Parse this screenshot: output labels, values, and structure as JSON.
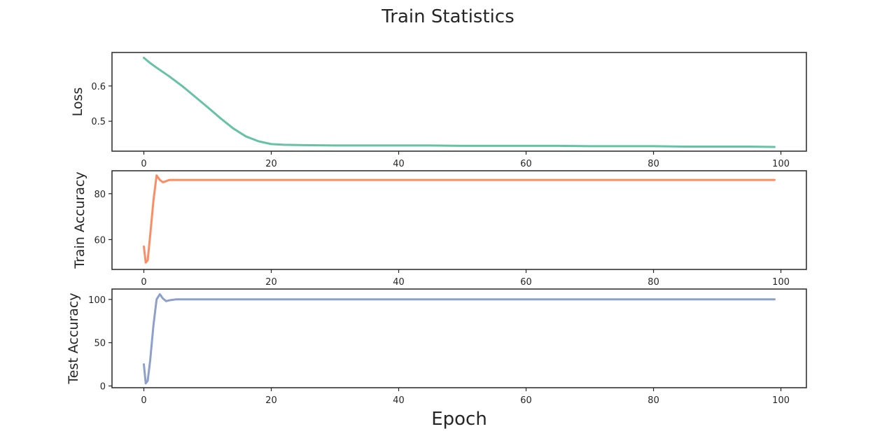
{
  "figure": {
    "title": "Train Statistics",
    "xlabel": "Epoch"
  },
  "chart_data": [
    {
      "type": "line",
      "title": "",
      "xlabel": "",
      "ylabel": "Loss",
      "xlim": [
        -5,
        104
      ],
      "ylim": [
        0.415,
        0.695
      ],
      "xticks": [
        0,
        20,
        40,
        60,
        80,
        100
      ],
      "yticks": [
        0.5,
        0.6
      ],
      "ytick_labels": [
        "0.5",
        "0.6"
      ],
      "grid": false,
      "color": "#66c2a5",
      "series": [
        {
          "x": [
            0,
            1,
            2,
            4,
            6,
            8,
            10,
            12,
            14,
            16,
            18,
            20,
            22,
            25,
            30,
            35,
            40,
            45,
            50,
            55,
            60,
            65,
            70,
            75,
            80,
            85,
            90,
            95,
            99
          ],
          "y": [
            0.68,
            0.665,
            0.652,
            0.627,
            0.6,
            0.57,
            0.54,
            0.509,
            0.48,
            0.457,
            0.443,
            0.435,
            0.433,
            0.432,
            0.431,
            0.431,
            0.431,
            0.431,
            0.43,
            0.43,
            0.43,
            0.43,
            0.429,
            0.429,
            0.429,
            0.428,
            0.428,
            0.428,
            0.427
          ]
        }
      ]
    },
    {
      "type": "line",
      "title": "",
      "xlabel": "",
      "ylabel": "Train Accuracy",
      "xlim": [
        -5,
        104
      ],
      "ylim": [
        47,
        90
      ],
      "xticks": [
        0,
        20,
        40,
        60,
        80,
        100
      ],
      "yticks": [
        60,
        80
      ],
      "ytick_labels": [
        "60",
        "80"
      ],
      "grid": false,
      "color": "#fc8d62",
      "series": [
        {
          "x": [
            0,
            0.3,
            0.6,
            1,
            1.5,
            2,
            2.5,
            3,
            3.5,
            4,
            5,
            6,
            8,
            10,
            20,
            40,
            60,
            80,
            99
          ],
          "y": [
            57,
            50,
            51,
            62,
            77,
            88,
            86,
            85,
            85.5,
            86,
            86,
            86,
            86,
            86,
            86,
            86,
            86,
            86,
            86
          ]
        }
      ]
    },
    {
      "type": "line",
      "title": "",
      "xlabel": "",
      "ylabel": "Test Accuracy",
      "xlim": [
        -5,
        104
      ],
      "ylim": [
        -2,
        112
      ],
      "xticks": [
        0,
        20,
        40,
        60,
        80,
        100
      ],
      "yticks": [
        0,
        50,
        100
      ],
      "ytick_labels": [
        "0",
        "50",
        "100"
      ],
      "grid": false,
      "color": "#8da0cb",
      "series": [
        {
          "x": [
            0,
            0.3,
            0.6,
            1,
            1.5,
            2,
            2.5,
            3,
            3.5,
            4,
            5,
            6,
            8,
            10,
            20,
            40,
            60,
            80,
            99
          ],
          "y": [
            25,
            3,
            6,
            30,
            70,
            100,
            106,
            101,
            98,
            99,
            100,
            100,
            100,
            100,
            100,
            100,
            100,
            100,
            100
          ]
        }
      ]
    }
  ]
}
